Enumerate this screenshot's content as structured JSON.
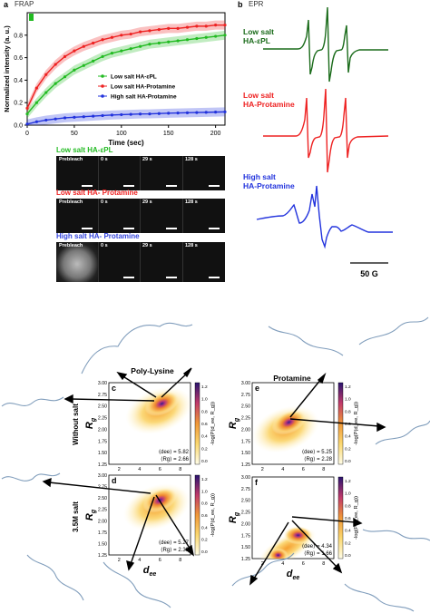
{
  "panel_a": {
    "letter": "a",
    "title": "FRAP",
    "chart_data": {
      "type": "scatter",
      "xlabel": "Time (sec)",
      "ylabel": "Normalized intensity (a. u.)",
      "xlim": [
        0,
        210
      ],
      "ylim": [
        0,
        1.0
      ],
      "xticks": [
        0,
        50,
        100,
        150,
        200
      ],
      "yticks": [
        0.0,
        0.2,
        0.4,
        0.6,
        0.8
      ],
      "legend_position": "center-right",
      "series": [
        {
          "name": "Low salt HA-εPL",
          "color": "#22bb22",
          "x": [
            0,
            10,
            20,
            30,
            40,
            50,
            60,
            70,
            80,
            90,
            100,
            110,
            120,
            130,
            140,
            150,
            160,
            170,
            180,
            190,
            200,
            210
          ],
          "y": [
            0.1,
            0.2,
            0.29,
            0.37,
            0.43,
            0.49,
            0.53,
            0.57,
            0.61,
            0.64,
            0.66,
            0.68,
            0.7,
            0.72,
            0.73,
            0.74,
            0.75,
            0.76,
            0.77,
            0.78,
            0.79,
            0.8
          ]
        },
        {
          "name": "Low salt HA-Protamine",
          "color": "#ee2222",
          "x": [
            0,
            10,
            20,
            30,
            40,
            50,
            60,
            70,
            80,
            90,
            100,
            110,
            120,
            130,
            140,
            150,
            160,
            170,
            180,
            190,
            200,
            210
          ],
          "y": [
            0.15,
            0.33,
            0.45,
            0.54,
            0.61,
            0.66,
            0.7,
            0.73,
            0.76,
            0.78,
            0.8,
            0.81,
            0.83,
            0.84,
            0.85,
            0.86,
            0.86,
            0.87,
            0.88,
            0.88,
            0.89,
            0.89
          ]
        },
        {
          "name": "High salt HA-Protamine",
          "color": "#2233dd",
          "x": [
            0,
            10,
            20,
            30,
            40,
            50,
            60,
            70,
            80,
            90,
            100,
            110,
            120,
            130,
            140,
            150,
            160,
            170,
            180,
            190,
            200,
            210
          ],
          "y": [
            0.01,
            0.03,
            0.045,
            0.055,
            0.065,
            0.07,
            0.075,
            0.08,
            0.085,
            0.09,
            0.093,
            0.096,
            0.099,
            0.1,
            0.103,
            0.106,
            0.108,
            0.11,
            0.112,
            0.114,
            0.116,
            0.118
          ]
        }
      ]
    },
    "frap_rows": [
      {
        "title": "Low salt HA-εPL",
        "color": "#22bb22",
        "labels": [
          "Prebleach",
          "0 s",
          "29 s",
          "128 s"
        ]
      },
      {
        "title": "Low salt HA- Protamine",
        "color": "#ee2222",
        "labels": [
          "Prebleach",
          "0 s",
          "29 s",
          "128 s"
        ]
      },
      {
        "title": "High salt HA- Protamine",
        "color": "#3344dd",
        "labels": [
          "Prebleach",
          "0 s",
          "29 s",
          "128 s"
        ]
      }
    ]
  },
  "panel_b": {
    "letter": "b",
    "title": "EPR",
    "spectra": [
      {
        "label_line1": "Low salt",
        "label_line2": "HA-εPL",
        "color": "#1a6b1a"
      },
      {
        "label_line1": "Low salt",
        "label_line2": "HA-Protamine",
        "color": "#ee2222"
      },
      {
        "label_line1": "High salt",
        "label_line2": "HA-Protamine",
        "color": "#2233dd"
      }
    ],
    "scale_label": "50 G"
  },
  "panels_cf": {
    "col_titles": [
      "Poly-Lysine",
      "Protamine"
    ],
    "row_labels": [
      "Without salt",
      "3.5M salt"
    ],
    "colorbar": {
      "label": "-log(P(d_ee, R_g))",
      "ticks": [
        "1.2",
        "1.0",
        "0.8",
        "0.6",
        "0.4",
        "0.2",
        "0.0"
      ]
    },
    "y_axis": {
      "label": "R_g",
      "ticks": [
        "3.00",
        "2.75",
        "2.50",
        "2.25",
        "2.00",
        "1.75",
        "1.50",
        "1.25"
      ]
    },
    "x_axis": {
      "label": "d_ee",
      "ticks": [
        "2",
        "4",
        "6",
        "8"
      ]
    },
    "chart_data": [
      {
        "type": "heatmap",
        "letter": "c",
        "condition": "Poly-Lysine, without salt",
        "dee_mean": "5.82",
        "rg_mean": "2.66",
        "peak": [
          6.2,
          2.55
        ]
      },
      {
        "type": "heatmap",
        "letter": "e",
        "condition": "Protamine, without salt",
        "dee_mean": "5.25",
        "rg_mean": "2.28",
        "peak": [
          4.6,
          2.15
        ]
      },
      {
        "type": "heatmap",
        "letter": "d",
        "condition": "Poly-Lysine, 3.5M salt",
        "dee_mean": "5.27",
        "rg_mean": "2.39",
        "peak": [
          6.0,
          2.45
        ]
      },
      {
        "type": "heatmap",
        "letter": "f",
        "condition": "Protamine, 3.5M salt",
        "dee_mean": "4.34",
        "rg_mean": "1.66",
        "peak": [
          5.5,
          1.75
        ]
      }
    ]
  },
  "colors": {
    "heat_low": "#fff7d0",
    "heat_mid": "#f5b030",
    "heat_high": "#c03a6a",
    "heat_peak": "#3a1e8c",
    "protein": "#6a8cb0"
  }
}
